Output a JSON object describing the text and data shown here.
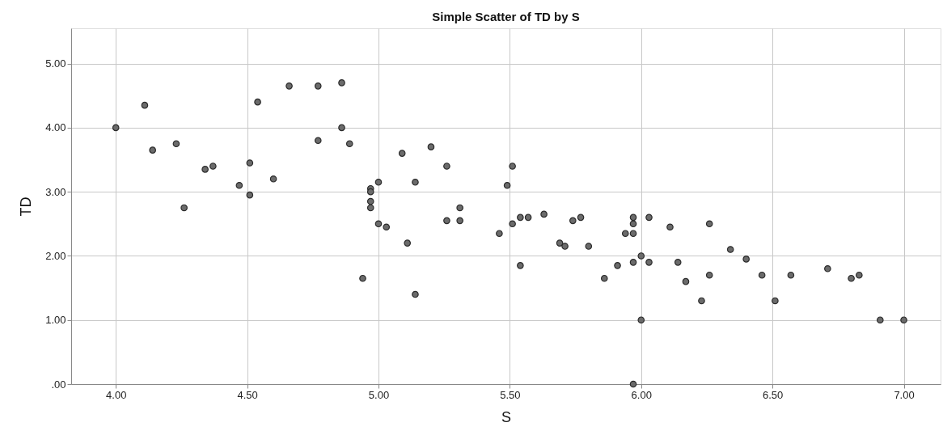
{
  "chart_data": {
    "type": "scatter",
    "title": "Simple Scatter of TD by S",
    "xlabel": "S",
    "ylabel": "TD",
    "x": [
      4.0,
      4.11,
      4.14,
      4.23,
      4.26,
      4.34,
      4.37,
      4.47,
      4.51,
      4.51,
      4.54,
      4.6,
      4.66,
      4.77,
      4.77,
      4.86,
      4.86,
      4.89,
      4.94,
      4.97,
      4.97,
      4.97,
      4.97,
      5.0,
      5.0,
      5.03,
      5.09,
      5.11,
      5.14,
      5.14,
      5.2,
      5.26,
      5.26,
      5.31,
      5.31,
      5.46,
      5.49,
      5.51,
      5.51,
      5.54,
      5.54,
      5.57,
      5.63,
      5.69,
      5.71,
      5.74,
      5.77,
      5.8,
      5.86,
      5.91,
      5.94,
      5.97,
      5.97,
      5.97,
      5.97,
      5.97,
      6.0,
      6.0,
      6.03,
      6.03,
      6.11,
      6.14,
      6.17,
      6.23,
      6.26,
      6.26,
      6.34,
      6.4,
      6.46,
      6.51,
      6.57,
      6.71,
      6.8,
      6.83,
      6.91,
      7.0
    ],
    "series": [
      {
        "color": "#6b6b6b",
        "values": [
          4.0,
          4.35,
          3.65,
          3.75,
          2.75,
          3.35,
          3.4,
          3.1,
          3.45,
          2.95,
          4.4,
          3.2,
          4.65,
          4.65,
          3.8,
          4.7,
          4.0,
          3.75,
          1.65,
          3.05,
          3.0,
          2.85,
          2.75,
          3.15,
          2.5,
          2.45,
          3.6,
          2.2,
          3.15,
          1.4,
          3.7,
          3.4,
          2.55,
          2.75,
          2.55,
          2.35,
          3.1,
          3.4,
          2.5,
          2.6,
          1.85,
          2.6,
          2.65,
          2.2,
          2.15,
          2.55,
          2.6,
          2.15,
          1.65,
          1.85,
          2.35,
          2.6,
          2.5,
          2.35,
          1.9,
          0.0,
          2.0,
          1.0,
          2.6,
          1.9,
          2.45,
          1.9,
          1.6,
          1.3,
          2.5,
          1.7,
          2.1,
          1.95,
          1.7,
          1.3,
          1.7,
          1.8,
          1.65,
          1.7,
          1.0,
          1.0
        ]
      }
    ],
    "xlim": [
      3.83,
      7.14
    ],
    "xticks": [
      {
        "value": 4,
        "label": "4.00"
      },
      {
        "value": 4.5,
        "label": "4.50"
      },
      {
        "value": 5,
        "label": "5.00"
      },
      {
        "value": 5.5,
        "label": "5.50"
      },
      {
        "value": 6,
        "label": "6.00"
      },
      {
        "value": 6.5,
        "label": "6.50"
      },
      {
        "value": 7,
        "label": "7.00"
      }
    ],
    "ylim": [
      0,
      5.55
    ],
    "yticks": [
      {
        "value": 0,
        "label": ".00"
      },
      {
        "value": 1,
        "label": "1.00"
      },
      {
        "value": 2,
        "label": "2.00"
      },
      {
        "value": 3,
        "label": "3.00"
      },
      {
        "value": 4,
        "label": "4.00"
      },
      {
        "value": 5,
        "label": "5.00"
      }
    ],
    "grid": true,
    "marker": "circle"
  }
}
